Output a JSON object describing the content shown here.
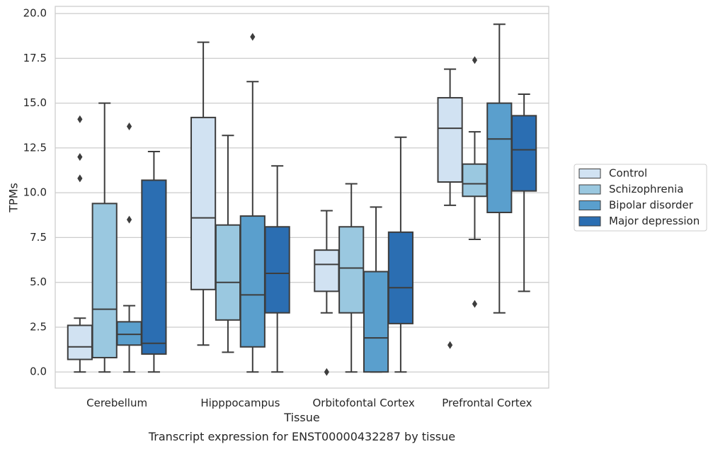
{
  "chart_data": {
    "type": "box",
    "title": "Transcript expression for ENST00000432287 by tissue",
    "xlabel": "Tissue",
    "ylabel": "TPMs",
    "ylim": [
      -0.9,
      20.4
    ],
    "yticks": [
      "0.0",
      "2.5",
      "5.0",
      "7.5",
      "10.0",
      "12.5",
      "15.0",
      "17.5",
      "20.0"
    ],
    "grid": true,
    "legend_placement": "right",
    "categories": [
      "Cerebellum",
      "Hipppocampus",
      "Orbitofontal Cortex",
      "Prefrontal Cortex"
    ],
    "series": [
      {
        "name": "Control",
        "color": "#d1e2f2",
        "boxes": [
          {
            "whislo": 0.0,
            "q1": 0.7,
            "med": 1.4,
            "q3": 2.6,
            "whishi": 3.0,
            "fliers": [
              10.8,
              12.0,
              14.1
            ]
          },
          {
            "whislo": 1.5,
            "q1": 4.6,
            "med": 8.6,
            "q3": 14.2,
            "whishi": 18.4,
            "fliers": []
          },
          {
            "whislo": 3.3,
            "q1": 4.5,
            "med": 6.0,
            "q3": 6.8,
            "whishi": 9.0,
            "fliers": [
              0.0
            ]
          },
          {
            "whislo": 9.3,
            "q1": 10.6,
            "med": 13.6,
            "q3": 15.3,
            "whishi": 16.9,
            "fliers": [
              1.5
            ]
          }
        ]
      },
      {
        "name": "Schizophrenia",
        "color": "#9ac8e0",
        "boxes": [
          {
            "whislo": 0.0,
            "q1": 0.8,
            "med": 3.5,
            "q3": 9.4,
            "whishi": 15.0,
            "fliers": []
          },
          {
            "whislo": 1.1,
            "q1": 2.9,
            "med": 5.0,
            "q3": 8.2,
            "whishi": 13.2,
            "fliers": []
          },
          {
            "whislo": 0.0,
            "q1": 3.3,
            "med": 5.8,
            "q3": 8.1,
            "whishi": 10.5,
            "fliers": []
          },
          {
            "whislo": 7.4,
            "q1": 9.8,
            "med": 10.5,
            "q3": 11.6,
            "whishi": 13.4,
            "fliers": [
              3.8,
              17.4
            ]
          }
        ]
      },
      {
        "name": "Bipolar disorder",
        "color": "#5a9fcd",
        "boxes": [
          {
            "whislo": 0.0,
            "q1": 1.5,
            "med": 2.1,
            "q3": 2.8,
            "whishi": 3.7,
            "fliers": [
              8.5,
              13.7
            ]
          },
          {
            "whislo": 0.0,
            "q1": 1.4,
            "med": 4.3,
            "q3": 8.7,
            "whishi": 16.2,
            "fliers": [
              18.7
            ]
          },
          {
            "whislo": 0.0,
            "q1": 0.0,
            "med": 1.9,
            "q3": 5.6,
            "whishi": 9.2,
            "fliers": []
          },
          {
            "whislo": 3.3,
            "q1": 8.9,
            "med": 13.0,
            "q3": 15.0,
            "whishi": 19.4,
            "fliers": []
          }
        ]
      },
      {
        "name": "Major depression",
        "color": "#2b6eb2",
        "boxes": [
          {
            "whislo": 0.0,
            "q1": 1.0,
            "med": 1.6,
            "q3": 10.7,
            "whishi": 12.3,
            "fliers": []
          },
          {
            "whislo": 0.0,
            "q1": 3.3,
            "med": 5.5,
            "q3": 8.1,
            "whishi": 11.5,
            "fliers": []
          },
          {
            "whislo": 0.0,
            "q1": 2.7,
            "med": 4.7,
            "q3": 7.8,
            "whishi": 13.1,
            "fliers": []
          },
          {
            "whislo": 4.5,
            "q1": 10.1,
            "med": 12.4,
            "q3": 14.3,
            "whishi": 15.5,
            "fliers": []
          }
        ]
      }
    ]
  }
}
